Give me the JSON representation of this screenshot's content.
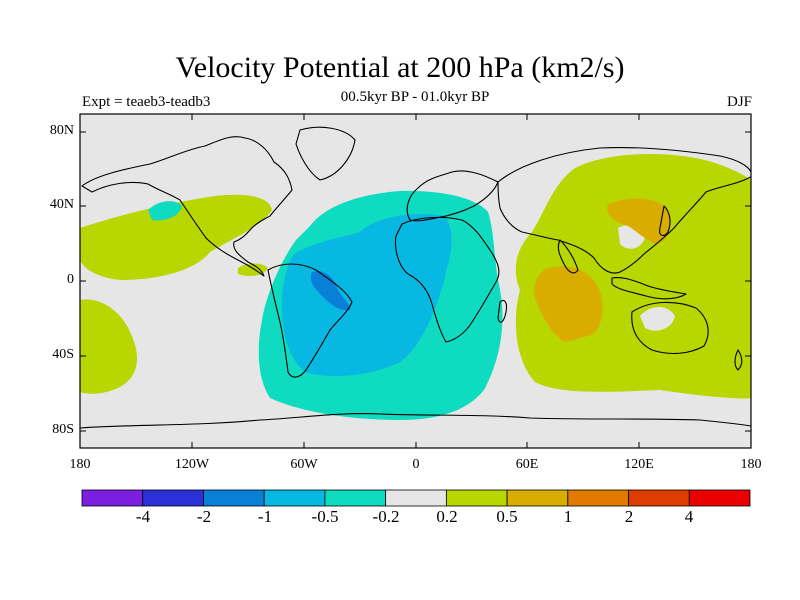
{
  "title": "Velocity Potential at 200 hPa (km2/s)",
  "subtitle": "00.5kyr BP - 01.0kyr BP",
  "expt_label": "Expt = teaeb3-teadb3",
  "season": "DJF",
  "map": {
    "lat_ticks": [
      "80N",
      "40N",
      "0",
      "40S",
      "80S"
    ],
    "lon_ticks": [
      "180",
      "120W",
      "60W",
      "0",
      "60E",
      "120E",
      "180"
    ],
    "ocean_color": "#e6e6e6",
    "coastline_color": "#000000"
  },
  "colorbar": {
    "colors": [
      "#7a1fe0",
      "#2a31d6",
      "#0a7fd8",
      "#07b8e3",
      "#0fdbc0",
      "#e6e6e6",
      "#b8d600",
      "#d8ad00",
      "#e07a00",
      "#de3c00",
      "#ea0000"
    ],
    "labels": [
      "-4",
      "-2",
      "-1",
      "-0.5",
      "-0.2",
      "0.2",
      "0.5",
      "1",
      "2",
      "4"
    ]
  },
  "regions": {
    "negative_weak": "#0fdbc0",
    "negative_mid": "#07b8e3",
    "negative_strong": "#0a7fd8",
    "positive_weak": "#b8d600",
    "positive_mid": "#d8ad00"
  }
}
